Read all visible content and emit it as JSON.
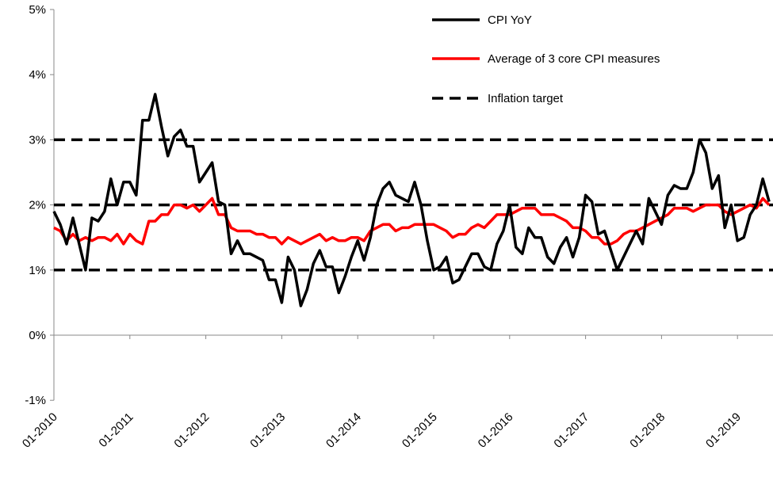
{
  "chart_data": {
    "type": "line",
    "title": "",
    "xlabel": "",
    "ylabel": "",
    "ylim": [
      -1,
      5
    ],
    "y_ticks": [
      "-1%",
      "0%",
      "1%",
      "2%",
      "3%",
      "4%",
      "5%"
    ],
    "x_ticks": [
      "01-2010",
      "01-2011",
      "01-2012",
      "01-2013",
      "01-2014",
      "01-2015",
      "01-2016",
      "01-2017",
      "01-2018",
      "01-2019"
    ],
    "x_start": "01-2010",
    "x_frequency": "monthly",
    "grid": false,
    "legend_position": "top-right",
    "series": [
      {
        "name": "CPI YoY",
        "color": "#000000",
        "style": "solid",
        "values": [
          1.9,
          1.7,
          1.4,
          1.8,
          1.4,
          1.0,
          1.8,
          1.75,
          1.9,
          2.4,
          2.0,
          2.35,
          2.35,
          2.15,
          3.3,
          3.3,
          3.7,
          3.2,
          2.75,
          3.05,
          3.15,
          2.9,
          2.9,
          2.35,
          2.5,
          2.65,
          2.05,
          2.0,
          1.25,
          1.45,
          1.25,
          1.25,
          1.2,
          1.15,
          0.85,
          0.85,
          0.5,
          1.2,
          1.0,
          0.45,
          0.7,
          1.1,
          1.3,
          1.05,
          1.05,
          0.65,
          0.9,
          1.2,
          1.45,
          1.15,
          1.5,
          2.0,
          2.25,
          2.35,
          2.15,
          2.1,
          2.05,
          2.35,
          2.0,
          1.45,
          1.0,
          1.05,
          1.2,
          0.8,
          0.85,
          1.05,
          1.25,
          1.25,
          1.05,
          1.0,
          1.4,
          1.6,
          2.0,
          1.35,
          1.25,
          1.65,
          1.5,
          1.5,
          1.2,
          1.1,
          1.35,
          1.5,
          1.2,
          1.5,
          2.15,
          2.05,
          1.55,
          1.6,
          1.3,
          1.0,
          1.2,
          1.4,
          1.6,
          1.4,
          2.1,
          1.9,
          1.7,
          2.15,
          2.3,
          2.25,
          2.25,
          2.5,
          3.0,
          2.8,
          2.25,
          2.45,
          1.65,
          2.0,
          1.45,
          1.5,
          1.85,
          2.0,
          2.4,
          2.05
        ]
      },
      {
        "name": "Average of 3 core CPI measures",
        "color": "#ff0000",
        "style": "solid",
        "values": [
          1.65,
          1.6,
          1.45,
          1.55,
          1.45,
          1.5,
          1.45,
          1.5,
          1.5,
          1.45,
          1.55,
          1.4,
          1.55,
          1.45,
          1.4,
          1.75,
          1.75,
          1.85,
          1.85,
          2.0,
          2.0,
          1.95,
          2.0,
          1.9,
          2.0,
          2.1,
          1.85,
          1.85,
          1.65,
          1.6,
          1.6,
          1.6,
          1.55,
          1.55,
          1.5,
          1.5,
          1.4,
          1.5,
          1.45,
          1.4,
          1.45,
          1.5,
          1.55,
          1.45,
          1.5,
          1.45,
          1.45,
          1.5,
          1.5,
          1.45,
          1.6,
          1.65,
          1.7,
          1.7,
          1.6,
          1.65,
          1.65,
          1.7,
          1.7,
          1.7,
          1.7,
          1.65,
          1.6,
          1.5,
          1.55,
          1.55,
          1.65,
          1.7,
          1.65,
          1.75,
          1.85,
          1.85,
          1.85,
          1.9,
          1.95,
          1.95,
          1.95,
          1.85,
          1.85,
          1.85,
          1.8,
          1.75,
          1.65,
          1.65,
          1.6,
          1.5,
          1.5,
          1.4,
          1.4,
          1.45,
          1.55,
          1.6,
          1.6,
          1.65,
          1.7,
          1.75,
          1.8,
          1.85,
          1.95,
          1.95,
          1.95,
          1.9,
          1.95,
          2.0,
          2.0,
          2.0,
          1.9,
          1.85,
          1.9,
          1.95,
          2.0,
          1.95,
          2.1,
          2.0
        ]
      },
      {
        "name": "Inflation target",
        "color": "#000000",
        "style": "dashed",
        "levels": [
          1,
          2,
          3
        ]
      }
    ]
  }
}
